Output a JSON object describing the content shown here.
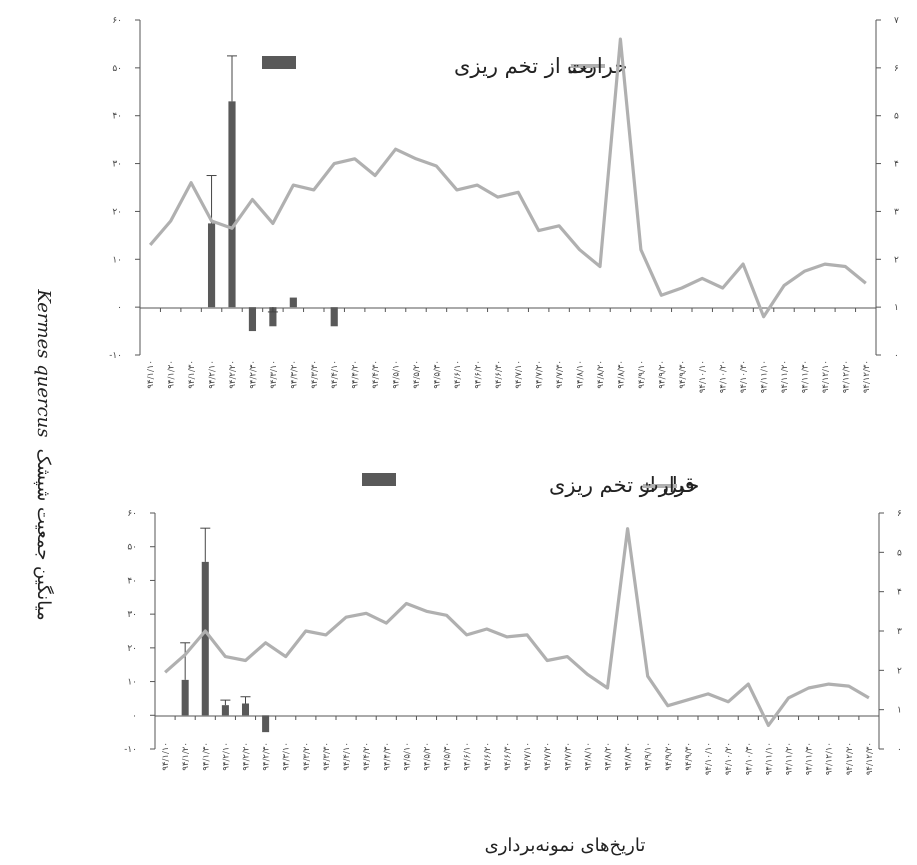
{
  "shared": {
    "ylabel_fa": "میانگین جمعیت شپشک",
    "ylabel_species": "Kermes quercus",
    "xlabel": "تاریخ‌های نمونه‌برداری"
  },
  "chart_data": [
    {
      "type": "bar+line",
      "title": "",
      "legend": [
        "بعد از تخم ریزی",
        "حرارت"
      ],
      "bar_series_name": "بعد از تخم ریزی",
      "line_series_name": "حرارت",
      "legend_placement": "top",
      "categories": [
        "۹۴/۱/۱۰",
        "۹۴/۱/۲۰",
        "۹۴/۱/۳۰",
        "۹۴/۲/۱۰",
        "۹۴/۲/۲۰",
        "۹۴/۲/۳۰",
        "۹۴/۳/۱۰",
        "۹۴/۳/۲۰",
        "۹۴/۳/۳۰",
        "۹۴/۴/۱۰",
        "۹۴/۴/۲۰",
        "۹۴/۴/۳۰",
        "۹۴/۵/۱۰",
        "۹۴/۵/۲۰",
        "۹۴/۵/۳۰",
        "۹۴/۶/۱۰",
        "۹۴/۶/۲۰",
        "۹۴/۶/۳۰",
        "۹۴/۷/۱۰",
        "۹۴/۷/۲۰",
        "۹۴/۷/۳۰",
        "۹۴/۸/۱۰",
        "۹۴/۸/۲۰",
        "۹۴/۸/۳۰",
        "۹۴/۹/۱۰",
        "۹۴/۹/۲۰",
        "۹۴/۹/۳۰",
        "۹۴/۱۰/۱۰",
        "۹۴/۱۰/۲۰",
        "۹۴/۱۰/۳۰",
        "۹۴/۱۱/۱۰",
        "۹۴/۱۱/۲۰",
        "۹۴/۱۱/۳۰",
        "۹۴/۱۲/۱۰",
        "۹۴/۱۲/۲۰",
        "۹۴/۱۲/۳۰"
      ],
      "left_axis": {
        "ylim": [
          -10,
          60
        ],
        "ticks": [
          -10,
          0,
          10,
          20,
          30,
          40,
          50,
          60
        ],
        "tick_labels": [
          "-۱۰",
          "۰",
          "۱۰",
          "۲۰",
          "۳۰",
          "۴۰",
          "۵۰",
          "۶۰"
        ]
      },
      "right_axis": {
        "ylim": [
          0,
          7
        ],
        "ticks": [
          0,
          1,
          2,
          3,
          4,
          5,
          6,
          7
        ],
        "tick_labels": [
          "۰",
          "۱",
          "۲",
          "۳",
          "۴",
          "۵",
          "۶",
          "۷"
        ]
      },
      "bars": [
        {
          "index": 3,
          "value": 17.5,
          "error": 10
        },
        {
          "index": 4,
          "value": 43,
          "error": 9.5
        },
        {
          "index": 5,
          "value": -5,
          "error": 0
        },
        {
          "index": 6,
          "value": -4,
          "error": 3
        },
        {
          "index": 7,
          "value": 2,
          "error": 0
        },
        {
          "index": 9,
          "value": -4,
          "error": 0
        }
      ],
      "line_values": [
        2.3,
        2.8,
        3.6,
        2.8,
        2.65,
        3.25,
        2.75,
        3.55,
        3.45,
        4.0,
        4.1,
        3.75,
        4.3,
        4.1,
        3.95,
        3.45,
        3.55,
        3.3,
        3.4,
        2.6,
        2.7,
        2.2,
        1.85,
        6.6,
        2.2,
        1.25,
        1.4,
        1.6,
        1.4,
        1.9,
        0.8,
        1.45,
        1.75,
        1.9,
        1.85,
        1.5
      ]
    },
    {
      "type": "bar+line",
      "title": "",
      "legend": [
        "قبل از تخم ریزی",
        "حرارت"
      ],
      "bar_series_name": "قبل از تخم ریزی",
      "line_series_name": "حرارت",
      "legend_placement": "top",
      "categories": [
        "۹۴/۱/۱۰",
        "۹۴/۱/۲۰",
        "۹۴/۱/۳۰",
        "۹۴/۲/۱۰",
        "۹۴/۲/۲۰",
        "۹۴/۲/۳۰",
        "۹۴/۳/۱۰",
        "۹۴/۳/۲۰",
        "۹۴/۳/۳۰",
        "۹۴/۴/۱۰",
        "۹۴/۴/۲۰",
        "۹۴/۴/۳۰",
        "۹۴/۵/۱۰",
        "۹۴/۵/۲۰",
        "۹۴/۵/۳۰",
        "۹۴/۶/۱۰",
        "۹۴/۶/۲۰",
        "۹۴/۶/۳۰",
        "۹۴/۷/۱۰",
        "۹۴/۷/۲۰",
        "۹۴/۷/۳۰",
        "۹۴/۸/۱۰",
        "۹۴/۸/۲۰",
        "۹۴/۸/۳۰",
        "۹۴/۹/۱۰",
        "۹۴/۹/۲۰",
        "۹۴/۹/۳۰",
        "۹۴/۱۰/۱۰",
        "۹۴/۱۰/۲۰",
        "۹۴/۱۰/۳۰",
        "۹۴/۱۱/۱۰",
        "۹۴/۱۱/۲۰",
        "۹۴/۱۱/۳۰",
        "۹۴/۱۲/۱۰",
        "۹۴/۱۲/۲۰",
        "۹۴/۱۲/۳۰"
      ],
      "left_axis": {
        "ylim": [
          -10,
          60
        ],
        "ticks": [
          -10,
          0,
          10,
          20,
          30,
          40,
          50,
          60
        ],
        "tick_labels": [
          "-۱۰",
          "۰",
          "۱۰",
          "۲۰",
          "۳۰",
          "۴۰",
          "۵۰",
          "۶۰"
        ]
      },
      "right_axis": {
        "ylim": [
          0,
          6
        ],
        "ticks": [
          0,
          1,
          2,
          3,
          4,
          5,
          6
        ],
        "tick_labels": [
          "۰",
          "۱",
          "۲",
          "۳",
          "۴",
          "۵",
          "۶"
        ]
      },
      "bars": [
        {
          "index": 1,
          "value": 10.5,
          "error": 11
        },
        {
          "index": 2,
          "value": 45.5,
          "error": 10
        },
        {
          "index": 3,
          "value": 3,
          "error": 1.5
        },
        {
          "index": 4,
          "value": 3.5,
          "error": 2
        },
        {
          "index": 5,
          "value": -5,
          "error": 0
        }
      ],
      "line_values": [
        1.95,
        2.4,
        3.0,
        2.35,
        2.25,
        2.7,
        2.35,
        3.0,
        2.9,
        3.35,
        3.45,
        3.2,
        3.7,
        3.5,
        3.4,
        2.9,
        3.05,
        2.85,
        2.9,
        2.25,
        2.35,
        1.9,
        1.55,
        5.6,
        1.85,
        1.1,
        1.25,
        1.4,
        1.2,
        1.65,
        0.6,
        1.3,
        1.55,
        1.65,
        1.6,
        1.3
      ]
    }
  ]
}
